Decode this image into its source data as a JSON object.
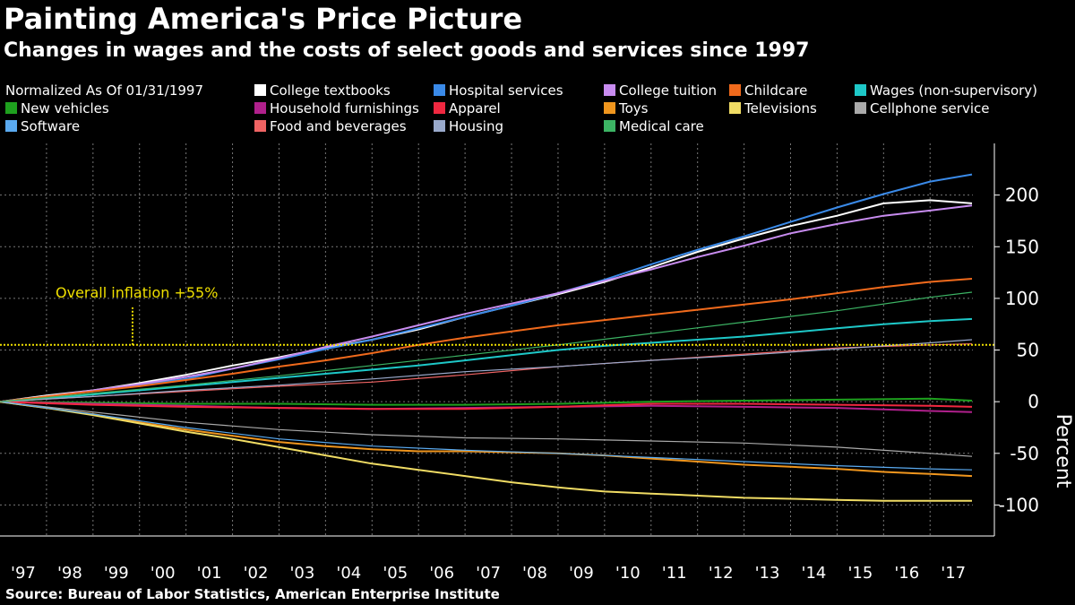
{
  "title": "Painting America's Price Picture",
  "subtitle": "Changes in wages and the costs of select goods and services since 1997",
  "normalized_note": "Normalized As Of 01/31/1997",
  "annotation": "Overall inflation +55%",
  "y_axis_label": "Percent",
  "source": "Source: Bureau of Labor Statistics, American Enterprise Institute",
  "chart_data": {
    "type": "line",
    "x_tick_labels": [
      "'97",
      "'98",
      "'99",
      "'00",
      "'01",
      "'02",
      "'03",
      "'04",
      "'05",
      "'06",
      "'07",
      "'08",
      "'09",
      "'10",
      "'11",
      "'12",
      "'13",
      "'14",
      "'15",
      "'16",
      "'17"
    ],
    "x_range": [
      1997.0,
      2017.92
    ],
    "y_ticks": [
      200,
      150,
      100,
      50,
      0,
      -50,
      -100
    ],
    "ylim": [
      -130,
      250
    ],
    "inflation_reference": 55,
    "grid": true,
    "legend_position": "top",
    "series": [
      {
        "name": "College textbooks",
        "color": "#ffffff",
        "x": [
          1997,
          1998,
          1999,
          2000,
          2001,
          2002,
          2003,
          2004,
          2005,
          2006,
          2007,
          2008,
          2009,
          2010,
          2011,
          2012,
          2013,
          2014,
          2015,
          2016,
          2017,
          2017.9
        ],
        "values": [
          0,
          6,
          11,
          18,
          26,
          35,
          43,
          52,
          60,
          70,
          82,
          93,
          104,
          116,
          130,
          145,
          158,
          170,
          180,
          192,
          195,
          192
        ]
      },
      {
        "name": "Hospital services",
        "color": "#3a8ae8",
        "x": [
          1997,
          1998,
          1999,
          2000,
          2001,
          2002,
          2003,
          2004,
          2005,
          2006,
          2007,
          2008,
          2009,
          2010,
          2011,
          2012,
          2013,
          2014,
          2015,
          2016,
          2017,
          2017.9
        ],
        "values": [
          0,
          5,
          10,
          16,
          22,
          32,
          41,
          51,
          60,
          71,
          82,
          93,
          105,
          118,
          133,
          147,
          160,
          174,
          188,
          201,
          213,
          220
        ]
      },
      {
        "name": "College tuition",
        "color": "#c88cf0",
        "x": [
          1997,
          1998,
          1999,
          2000,
          2001,
          2002,
          2003,
          2004,
          2005,
          2006,
          2007,
          2008,
          2009,
          2010,
          2011,
          2012,
          2013,
          2014,
          2015,
          2016,
          2017,
          2017.9
        ],
        "values": [
          0,
          5,
          11,
          17,
          24,
          32,
          42,
          53,
          63,
          74,
          85,
          95,
          105,
          117,
          128,
          140,
          151,
          163,
          172,
          180,
          185,
          190
        ]
      },
      {
        "name": "Childcare",
        "color": "#f06a1c",
        "x": [
          1997,
          1998,
          1999,
          2000,
          2001,
          2002,
          2003,
          2004,
          2005,
          2006,
          2007,
          2008,
          2009,
          2010,
          2011,
          2012,
          2013,
          2014,
          2015,
          2016,
          2017,
          2017.9
        ],
        "values": [
          0,
          5,
          10,
          15,
          21,
          27,
          34,
          40,
          47,
          55,
          62,
          68,
          74,
          79,
          84,
          89,
          94,
          99,
          105,
          111,
          116,
          119
        ]
      },
      {
        "name": "Wages (non-supervisory)",
        "color": "#1ec8c8",
        "x": [
          1997,
          1998,
          1999,
          2000,
          2001,
          2002,
          2003,
          2004,
          2005,
          2006,
          2007,
          2008,
          2009,
          2010,
          2011,
          2012,
          2013,
          2014,
          2015,
          2016,
          2017,
          2017.9
        ],
        "values": [
          0,
          3,
          7,
          11,
          15,
          19,
          23,
          27,
          31,
          35,
          40,
          45,
          50,
          54,
          57,
          60,
          63,
          67,
          71,
          75,
          78,
          80
        ]
      },
      {
        "name": "New vehicles",
        "color": "#1ea01e",
        "x": [
          1997,
          1999,
          2001,
          2003,
          2005,
          2007,
          2009,
          2011,
          2013,
          2015,
          2017,
          2017.9
        ],
        "values": [
          0,
          -1,
          -2,
          -2,
          -3,
          -3,
          -2,
          0,
          1,
          2,
          3,
          1
        ]
      },
      {
        "name": "Household furnishings",
        "color": "#b0208c",
        "x": [
          1997,
          1999,
          2001,
          2003,
          2005,
          2007,
          2009,
          2011,
          2013,
          2015,
          2017,
          2017.9
        ],
        "values": [
          0,
          -2,
          -4,
          -6,
          -7,
          -6,
          -5,
          -4,
          -5,
          -6,
          -9,
          -10
        ]
      },
      {
        "name": "Apparel",
        "color": "#f02840",
        "x": [
          1997,
          1999,
          2001,
          2003,
          2005,
          2007,
          2009,
          2011,
          2013,
          2015,
          2017,
          2017.9
        ],
        "values": [
          0,
          -3,
          -5,
          -6,
          -7,
          -7,
          -5,
          -2,
          -2,
          -3,
          -4,
          -5
        ]
      },
      {
        "name": "Toys",
        "color": "#f0961e",
        "x": [
          1997,
          1998,
          1999,
          2000,
          2001,
          2002,
          2003,
          2004,
          2005,
          2006,
          2007,
          2008,
          2009,
          2010,
          2011,
          2012,
          2013,
          2014,
          2015,
          2016,
          2017,
          2017.9
        ],
        "values": [
          0,
          -6,
          -12,
          -20,
          -27,
          -33,
          -39,
          -43,
          -46,
          -48,
          -48,
          -49,
          -50,
          -52,
          -55,
          -58,
          -61,
          -63,
          -65,
          -68,
          -70,
          -72
        ]
      },
      {
        "name": "Televisions",
        "color": "#f0dc64",
        "x": [
          1997,
          1998,
          1999,
          2000,
          2001,
          2002,
          2003,
          2004,
          2005,
          2006,
          2007,
          2008,
          2009,
          2010,
          2011,
          2012,
          2013,
          2014,
          2015,
          2016,
          2017,
          2017.9
        ],
        "values": [
          0,
          -6,
          -13,
          -21,
          -29,
          -36,
          -44,
          -52,
          -60,
          -66,
          -72,
          -78,
          -83,
          -87,
          -89,
          -91,
          -93,
          -94,
          -95,
          -96,
          -96,
          -96
        ]
      },
      {
        "name": "Cellphone service",
        "color": "#aaaaaa",
        "x": [
          1997,
          1999,
          2001,
          2003,
          2005,
          2007,
          2009,
          2011,
          2013,
          2015,
          2017,
          2017.9
        ],
        "values": [
          0,
          -10,
          -20,
          -27,
          -32,
          -35,
          -36,
          -38,
          -40,
          -44,
          -50,
          -53
        ]
      },
      {
        "name": "Software",
        "color": "#5aaaf0",
        "x": [
          1997,
          1999,
          2001,
          2003,
          2005,
          2007,
          2009,
          2011,
          2013,
          2015,
          2017,
          2017.9
        ],
        "values": [
          0,
          -12,
          -25,
          -36,
          -43,
          -47,
          -50,
          -54,
          -58,
          -62,
          -65,
          -66
        ]
      },
      {
        "name": "Food and beverages",
        "color": "#f06464",
        "x": [
          1997,
          1999,
          2001,
          2003,
          2005,
          2007,
          2009,
          2011,
          2013,
          2015,
          2017,
          2017.9
        ],
        "values": [
          0,
          5,
          10,
          15,
          19,
          26,
          34,
          40,
          46,
          52,
          55,
          56
        ]
      },
      {
        "name": "Housing",
        "color": "#9aaacc",
        "x": [
          1997,
          1999,
          2001,
          2003,
          2005,
          2007,
          2009,
          2011,
          2013,
          2015,
          2017,
          2017.9
        ],
        "values": [
          0,
          5,
          11,
          16,
          22,
          29,
          34,
          40,
          45,
          51,
          57,
          60
        ]
      },
      {
        "name": "Medical care",
        "color": "#3cb464",
        "x": [
          1997,
          1999,
          2001,
          2003,
          2005,
          2007,
          2009,
          2011,
          2013,
          2015,
          2017,
          2017.9
        ],
        "values": [
          0,
          8,
          16,
          25,
          35,
          45,
          55,
          66,
          77,
          88,
          101,
          106
        ]
      }
    ]
  }
}
